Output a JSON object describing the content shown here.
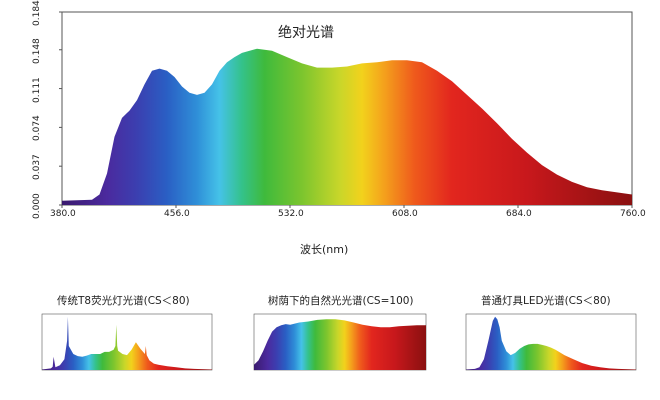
{
  "chart_data": [
    {
      "type": "area",
      "title": "绝对光谱",
      "xlabel": "波长(nm)",
      "ylabel": "",
      "xlim": [
        380,
        760
      ],
      "ylim": [
        0,
        0.184
      ],
      "x_ticks": [
        "380.0",
        "456.0",
        "532.0",
        "608.0",
        "684.0",
        "760.0"
      ],
      "y_ticks": [
        "0.000",
        "0.037",
        "0.074",
        "0.111",
        "0.148",
        "0.184"
      ],
      "x": [
        380,
        400,
        405,
        410,
        415,
        420,
        425,
        430,
        435,
        440,
        445,
        450,
        455,
        460,
        465,
        470,
        475,
        480,
        485,
        490,
        495,
        500,
        510,
        520,
        530,
        540,
        550,
        560,
        570,
        580,
        590,
        600,
        610,
        620,
        630,
        640,
        650,
        660,
        670,
        680,
        690,
        700,
        710,
        720,
        730,
        740,
        750,
        760
      ],
      "values": [
        0.004,
        0.005,
        0.01,
        0.03,
        0.065,
        0.083,
        0.09,
        0.1,
        0.115,
        0.128,
        0.13,
        0.128,
        0.122,
        0.113,
        0.107,
        0.105,
        0.107,
        0.115,
        0.128,
        0.136,
        0.141,
        0.145,
        0.149,
        0.147,
        0.141,
        0.135,
        0.131,
        0.131,
        0.132,
        0.135,
        0.136,
        0.138,
        0.138,
        0.136,
        0.128,
        0.118,
        0.105,
        0.092,
        0.078,
        0.063,
        0.05,
        0.038,
        0.029,
        0.022,
        0.017,
        0.014,
        0.012,
        0.01
      ]
    },
    {
      "type": "area",
      "title": "传统T8荧光灯光谱(CS＜80)",
      "x": [
        380,
        400,
        404,
        406,
        410,
        420,
        430,
        436,
        438,
        440,
        450,
        460,
        470,
        480,
        490,
        500,
        510,
        520,
        530,
        540,
        544,
        546,
        548,
        550,
        560,
        570,
        580,
        590,
        600,
        610,
        612,
        614,
        620,
        630,
        640,
        660,
        680,
        700,
        720,
        760
      ],
      "values": [
        0.01,
        0.03,
        0.06,
        0.25,
        0.05,
        0.09,
        0.2,
        0.55,
        1.0,
        0.45,
        0.3,
        0.26,
        0.25,
        0.27,
        0.3,
        0.3,
        0.3,
        0.34,
        0.34,
        0.38,
        0.45,
        0.85,
        0.45,
        0.36,
        0.3,
        0.28,
        0.38,
        0.52,
        0.4,
        0.3,
        0.45,
        0.28,
        0.18,
        0.12,
        0.1,
        0.07,
        0.05,
        0.03,
        0.02,
        0.01
      ]
    },
    {
      "type": "area",
      "title": "树荫下的自然光光谱(CS=100)",
      "x": [
        380,
        390,
        400,
        410,
        420,
        430,
        440,
        450,
        460,
        470,
        480,
        490,
        500,
        520,
        540,
        560,
        580,
        600,
        620,
        640,
        660,
        680,
        700,
        720,
        740,
        760
      ],
      "values": [
        0.1,
        0.18,
        0.35,
        0.55,
        0.72,
        0.8,
        0.84,
        0.86,
        0.85,
        0.87,
        0.89,
        0.9,
        0.91,
        0.94,
        0.95,
        0.95,
        0.93,
        0.89,
        0.85,
        0.82,
        0.8,
        0.8,
        0.82,
        0.83,
        0.84,
        0.84
      ]
    },
    {
      "type": "area",
      "title": "普通灯具LED光谱(CS＜80)",
      "x": [
        380,
        400,
        410,
        420,
        430,
        440,
        445,
        450,
        455,
        460,
        470,
        480,
        490,
        500,
        510,
        520,
        530,
        540,
        550,
        560,
        570,
        580,
        590,
        600,
        620,
        640,
        660,
        680,
        700,
        720,
        760
      ],
      "values": [
        0.01,
        0.02,
        0.05,
        0.2,
        0.55,
        0.92,
        1.0,
        0.95,
        0.8,
        0.55,
        0.35,
        0.28,
        0.32,
        0.4,
        0.45,
        0.48,
        0.49,
        0.49,
        0.47,
        0.45,
        0.42,
        0.38,
        0.33,
        0.28,
        0.2,
        0.13,
        0.08,
        0.05,
        0.03,
        0.02,
        0.01
      ]
    }
  ]
}
